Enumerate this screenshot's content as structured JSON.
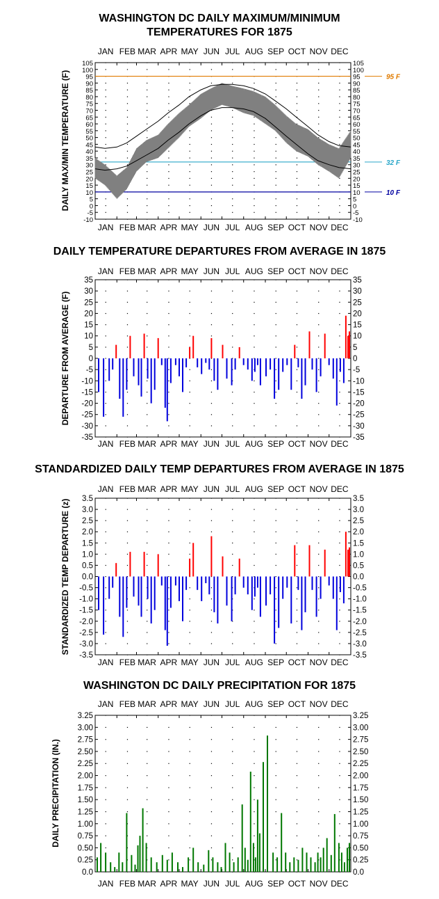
{
  "charts": [
    {
      "title_lines": [
        "WASHINGTON DC DAILY MAXIMUM/MINIMUM",
        "TEMPERATURES FOR 1875"
      ],
      "ylabel": "DAILY MAX/MIN TEMPERATURE (F)",
      "yticks": [
        "105",
        "100",
        "95",
        "90",
        "85",
        "80",
        "75",
        "70",
        "65",
        "60",
        "55",
        "50",
        "45",
        "40",
        "35",
        "30",
        "25",
        "20",
        "15",
        "10",
        "5",
        "0",
        "-5",
        "-10"
      ],
      "reference_lines": [
        {
          "label": "95 F",
          "value": 95,
          "color": "#e07b00"
        },
        {
          "label": "32 F",
          "value": 32,
          "color": "#2aa7c9"
        },
        {
          "label": "10 F",
          "value": 10,
          "color": "#0000a0"
        }
      ]
    },
    {
      "title": "DAILY TEMPERATURE DEPARTURES FROM AVERAGE IN 1875",
      "ylabel": "DEPARTURE FROM AVERAGE (F)",
      "yticks": [
        "35",
        "30",
        "25",
        "20",
        "15",
        "10",
        "5",
        "0",
        "-5",
        "-10",
        "-15",
        "-20",
        "-25",
        "-30",
        "-35"
      ]
    },
    {
      "title": "STANDARDIZED DAILY TEMP DEPARTURES FROM AVERAGE IN 1875",
      "ylabel": "STANDARDIZED TEMP DEPARTURE (z)",
      "yticks": [
        "3.5",
        "3.0",
        "2.5",
        "2.0",
        "1.5",
        "1.0",
        "0.5",
        "0.0",
        "-0.5",
        "-1.0",
        "-1.5",
        "-2.0",
        "-2.5",
        "-3.0",
        "-3.5"
      ]
    },
    {
      "title": "WASHINGTON DC DAILY PRECIPITATION FOR 1875",
      "ylabel": "DAILY PRECIPITATION (IN.)",
      "yticks": [
        "3.25",
        "3.00",
        "2.75",
        "2.50",
        "2.25",
        "2.00",
        "1.75",
        "1.50",
        "1.25",
        "1.00",
        "0.75",
        "0.50",
        "0.25",
        "0.0"
      ]
    }
  ],
  "months": [
    "JAN",
    "FEB",
    "MAR",
    "APR",
    "MAY",
    "JUN",
    "JUL",
    "AUG",
    "SEP",
    "OCT",
    "NOV",
    "DEC"
  ],
  "chart_data": [
    {
      "type": "line",
      "title": "WASHINGTON DC DAILY MAXIMUM/MINIMUM TEMPERATURES FOR 1875",
      "ylabel": "DAILY MAX/MIN TEMPERATURE (F)",
      "ylim": [
        -10,
        105
      ],
      "x": [
        "Jan 1",
        "Jan 15",
        "Feb 1",
        "Feb 15",
        "Mar 1",
        "Mar 15",
        "Apr 1",
        "Apr 15",
        "May 1",
        "May 15",
        "Jun 1",
        "Jun 15",
        "Jul 1",
        "Jul 15",
        "Aug 1",
        "Aug 15",
        "Sep 1",
        "Sep 15",
        "Oct 1",
        "Oct 15",
        "Nov 1",
        "Nov 15",
        "Dec 1",
        "Dec 15",
        "Dec 31"
      ],
      "series": [
        {
          "name": "",
          "color": "#808080",
          "values_max": [
            35,
            30,
            22,
            28,
            42,
            48,
            52,
            60,
            68,
            74,
            82,
            86,
            90,
            88,
            86,
            84,
            80,
            74,
            66,
            60,
            56,
            50,
            45,
            42,
            55
          ],
          "values_min": [
            20,
            15,
            5,
            12,
            25,
            32,
            35,
            42,
            50,
            58,
            64,
            70,
            74,
            72,
            68,
            66,
            60,
            55,
            46,
            40,
            36,
            30,
            25,
            20,
            35
          ]
        },
        {
          "name": "",
          "color": "#000000",
          "values_max": [
            43,
            42,
            43,
            46,
            51,
            56,
            62,
            68,
            74,
            80,
            85,
            88,
            89,
            89,
            88,
            86,
            82,
            77,
            71,
            65,
            58,
            52,
            47,
            44,
            43
          ]
        },
        {
          "name": "",
          "color": "#000000",
          "values_min": [
            27,
            26,
            27,
            29,
            33,
            37,
            42,
            48,
            54,
            60,
            66,
            70,
            72,
            72,
            71,
            69,
            64,
            58,
            51,
            45,
            38,
            33,
            30,
            28,
            27
          ]
        }
      ],
      "reference_lines": [
        95,
        32,
        10
      ]
    },
    {
      "type": "bar",
      "title": "DAILY TEMPERATURE DEPARTURES FROM AVERAGE IN 1875",
      "ylabel": "DEPARTURE FROM AVERAGE (F)",
      "ylim": [
        -35,
        35
      ],
      "x_days": [
        5,
        12,
        20,
        25,
        30,
        35,
        40,
        45,
        50,
        55,
        62,
        66,
        70,
        75,
        80,
        85,
        90,
        95,
        100,
        103,
        108,
        115,
        120,
        125,
        130,
        135,
        140,
        146,
        152,
        158,
        163,
        166,
        170,
        175,
        182,
        188,
        195,
        200,
        206,
        212,
        218,
        224,
        228,
        232,
        236,
        244,
        250,
        256,
        262,
        268,
        274,
        280,
        285,
        290,
        295,
        300,
        306,
        310,
        316,
        322,
        328,
        334,
        340,
        345,
        350,
        355,
        358,
        361,
        363
      ],
      "values": [
        -15,
        -26,
        -10,
        -5,
        6,
        -18,
        -26,
        -14,
        10,
        -8,
        -12,
        -17,
        11,
        -9,
        -20,
        -14,
        9,
        -3,
        -22,
        -28,
        -11,
        -3,
        -8,
        -15,
        -4,
        5,
        10,
        -4,
        -7,
        -2,
        -5,
        9,
        -10,
        -14,
        6,
        -9,
        -12,
        -5,
        5,
        -3,
        -5,
        -10,
        -6,
        -3,
        -12,
        -8,
        -5,
        -18,
        -14,
        -6,
        -3,
        -14,
        6,
        -4,
        -18,
        -12,
        12,
        -5,
        -15,
        -8,
        11,
        -3,
        -9,
        -21,
        -6,
        -11,
        19,
        10,
        12
      ],
      "colors": {
        "positive": "#ff0000",
        "negative": "#0000dd"
      }
    },
    {
      "type": "bar",
      "title": "STANDARDIZED DAILY TEMP DEPARTURES FROM AVERAGE IN 1875",
      "ylabel": "STANDARDIZED TEMP DEPARTURE (z)",
      "ylim": [
        -3.5,
        3.5
      ],
      "x_days": [
        5,
        12,
        20,
        25,
        30,
        35,
        40,
        45,
        50,
        55,
        62,
        66,
        70,
        75,
        80,
        85,
        90,
        95,
        100,
        103,
        108,
        115,
        120,
        125,
        130,
        135,
        140,
        146,
        152,
        158,
        163,
        166,
        170,
        175,
        182,
        188,
        195,
        200,
        206,
        212,
        218,
        224,
        228,
        232,
        236,
        244,
        250,
        256,
        262,
        268,
        274,
        280,
        285,
        290,
        295,
        300,
        306,
        310,
        316,
        322,
        328,
        334,
        340,
        345,
        350,
        355,
        358,
        361,
        363
      ],
      "values": [
        -1.5,
        -2.6,
        -1.0,
        -0.5,
        0.6,
        -1.8,
        -2.7,
        -1.4,
        1.1,
        -0.9,
        -1.3,
        -1.8,
        1.1,
        -1.0,
        -2.1,
        -1.5,
        1.0,
        -0.4,
        -2.4,
        -3.1,
        -1.4,
        -0.4,
        -1.1,
        -2.0,
        -0.6,
        0.8,
        1.5,
        -0.6,
        -1.1,
        -0.3,
        -0.8,
        1.8,
        -1.6,
        -2.1,
        0.9,
        -1.3,
        -2.0,
        -0.8,
        0.8,
        -0.5,
        -0.8,
        -1.5,
        -0.9,
        -0.5,
        -1.8,
        -1.3,
        -0.8,
        -3.0,
        -2.3,
        -1.0,
        -0.5,
        -2.1,
        1.4,
        -0.6,
        -2.4,
        -1.6,
        1.4,
        -0.6,
        -1.8,
        -1.0,
        1.2,
        -0.4,
        -1.0,
        -2.4,
        -0.7,
        -1.2,
        2.0,
        1.2,
        1.3
      ],
      "colors": {
        "positive": "#ff0000",
        "negative": "#0000dd"
      }
    },
    {
      "type": "bar",
      "title": "WASHINGTON DC DAILY PRECIPITATION FOR 1875",
      "ylabel": "DAILY PRECIPITATION (IN.)",
      "ylim": [
        0,
        3.25
      ],
      "x_days": [
        3,
        8,
        15,
        22,
        28,
        34,
        39,
        45,
        52,
        57,
        61,
        64,
        68,
        73,
        80,
        88,
        96,
        103,
        110,
        118,
        125,
        133,
        140,
        147,
        155,
        162,
        168,
        175,
        180,
        186,
        192,
        198,
        204,
        210,
        214,
        218,
        222,
        226,
        229,
        232,
        235,
        240,
        246,
        254,
        260,
        266,
        272,
        278,
        284,
        290,
        296,
        302,
        308,
        314,
        318,
        322,
        326,
        331,
        337,
        342,
        348,
        352,
        356,
        360,
        363
      ],
      "values": [
        0.3,
        0.6,
        0.4,
        0.2,
        0.1,
        0.4,
        0.2,
        1.22,
        0.35,
        0.15,
        0.55,
        0.75,
        1.32,
        0.6,
        0.3,
        0.2,
        0.35,
        0.25,
        0.4,
        0.2,
        0.1,
        0.3,
        0.5,
        0.2,
        0.15,
        0.45,
        0.3,
        0.2,
        0.1,
        0.6,
        0.4,
        0.2,
        0.3,
        1.4,
        0.5,
        0.25,
        2.08,
        0.6,
        0.3,
        1.5,
        0.8,
        2.28,
        2.83,
        0.4,
        0.3,
        1.22,
        0.4,
        0.2,
        0.3,
        0.25,
        0.5,
        0.4,
        0.3,
        0.2,
        0.4,
        0.3,
        0.5,
        0.7,
        0.35,
        1.2,
        0.6,
        0.4,
        0.2,
        0.5,
        0.6
      ],
      "color": "#007700"
    }
  ]
}
